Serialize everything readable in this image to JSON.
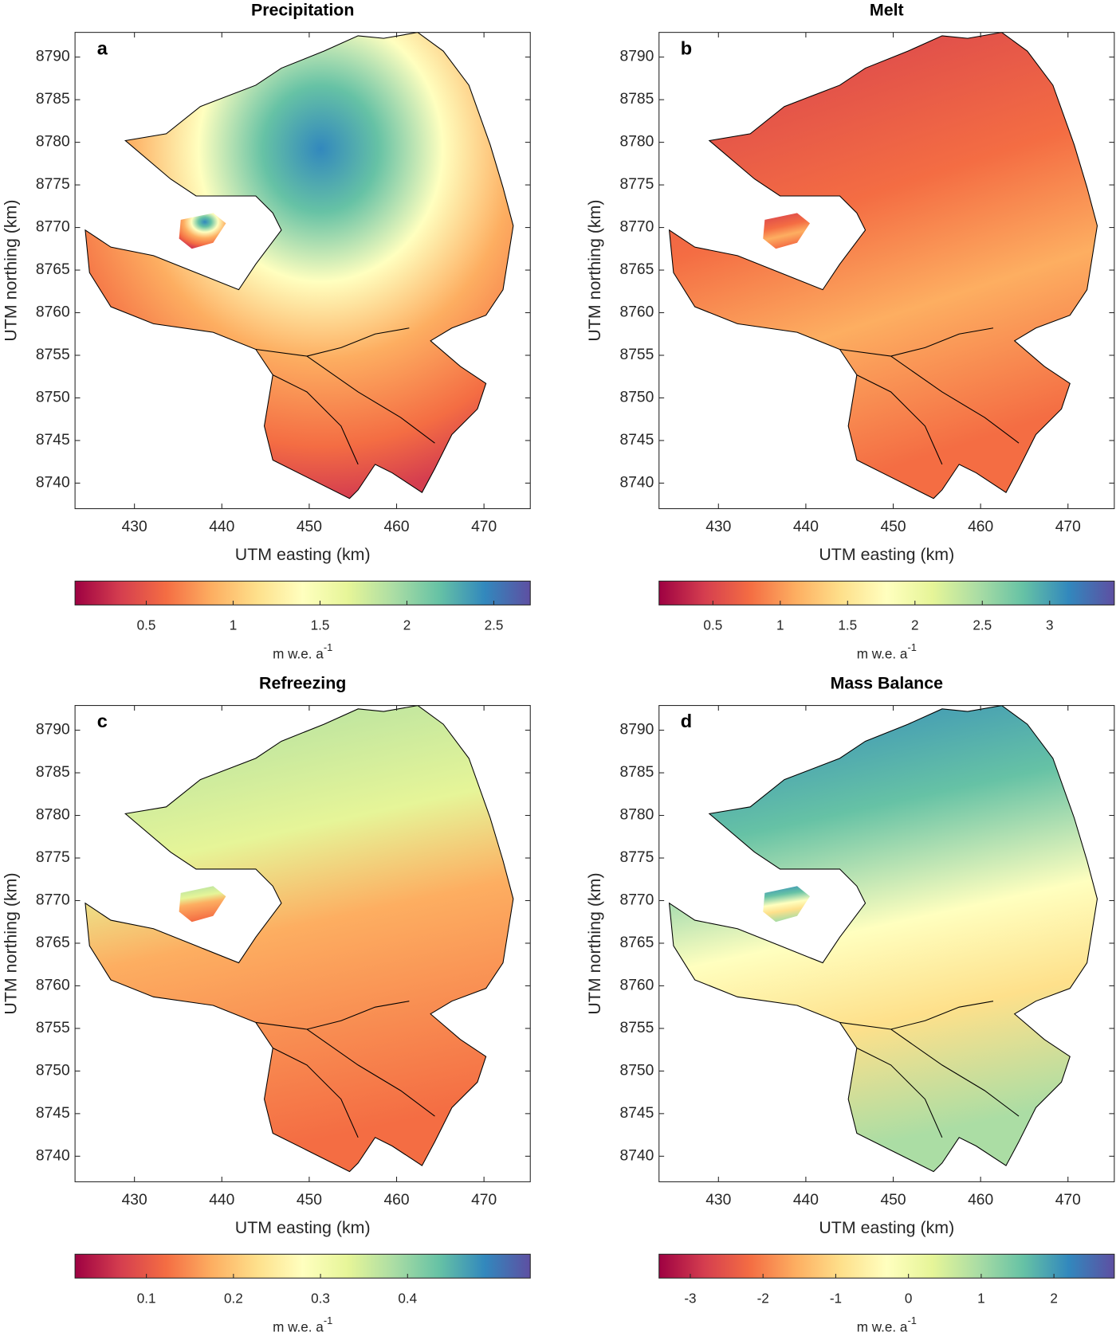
{
  "chart_data": [
    {
      "type": "map",
      "title": "Precipitation",
      "panel_label": "a",
      "xlabel": "UTM easting (km)",
      "ylabel": "UTM northing (km)",
      "xlim": [
        423.2,
        475.3
      ],
      "ylim": [
        8737,
        8792.9
      ],
      "xticks": [
        430,
        440,
        450,
        460,
        470
      ],
      "yticks": [
        8740,
        8745,
        8750,
        8755,
        8760,
        8765,
        8770,
        8775,
        8780,
        8785,
        8790
      ],
      "colorbar": {
        "clim": [
          0.09,
          2.71
        ],
        "ticks": [
          0.5,
          1,
          1.5,
          2,
          2.5
        ],
        "label": "m w.e. a",
        "label_exponent": "-1"
      }
    },
    {
      "type": "map",
      "title": "Melt",
      "panel_label": "b",
      "xlabel": "UTM easting (km)",
      "ylabel": "UTM northing (km)",
      "xlim": [
        423.2,
        475.3
      ],
      "ylim": [
        8737,
        8792.9
      ],
      "xticks": [
        430,
        440,
        450,
        460,
        470
      ],
      "yticks": [
        8740,
        8745,
        8750,
        8755,
        8760,
        8765,
        8770,
        8775,
        8780,
        8785,
        8790
      ],
      "colorbar": {
        "clim": [
          0.1,
          3.48
        ],
        "ticks": [
          0.5,
          1,
          1.5,
          2,
          2.5,
          3
        ],
        "label": "m w.e. a",
        "label_exponent": "-1"
      }
    },
    {
      "type": "map",
      "title": "Refreezing",
      "panel_label": "c",
      "xlabel": "UTM easting (km)",
      "ylabel": "UTM northing (km)",
      "xlim": [
        423.2,
        475.3
      ],
      "ylim": [
        8737,
        8792.9
      ],
      "xticks": [
        430,
        440,
        450,
        460,
        470
      ],
      "yticks": [
        8740,
        8745,
        8750,
        8755,
        8760,
        8765,
        8770,
        8775,
        8780,
        8785,
        8790
      ],
      "colorbar": {
        "clim": [
          0.018,
          0.541
        ],
        "ticks": [
          0.1,
          0.2,
          0.3,
          0.4
        ],
        "label": "m w.e. a",
        "label_exponent": "-1"
      }
    },
    {
      "type": "map",
      "title": "Mass Balance",
      "panel_label": "d",
      "xlabel": "UTM easting (km)",
      "ylabel": "UTM northing (km)",
      "xlim": [
        423.2,
        475.3
      ],
      "ylim": [
        8737,
        8792.9
      ],
      "xticks": [
        430,
        440,
        450,
        460,
        470
      ],
      "yticks": [
        8740,
        8745,
        8750,
        8755,
        8760,
        8765,
        8770,
        8775,
        8780,
        8785,
        8790
      ],
      "colorbar": {
        "clim": [
          -3.43,
          2.83
        ],
        "ticks": [
          -3,
          -2,
          -1,
          0,
          1,
          2
        ],
        "label": "m w.e. a",
        "label_exponent": "-1"
      }
    }
  ]
}
